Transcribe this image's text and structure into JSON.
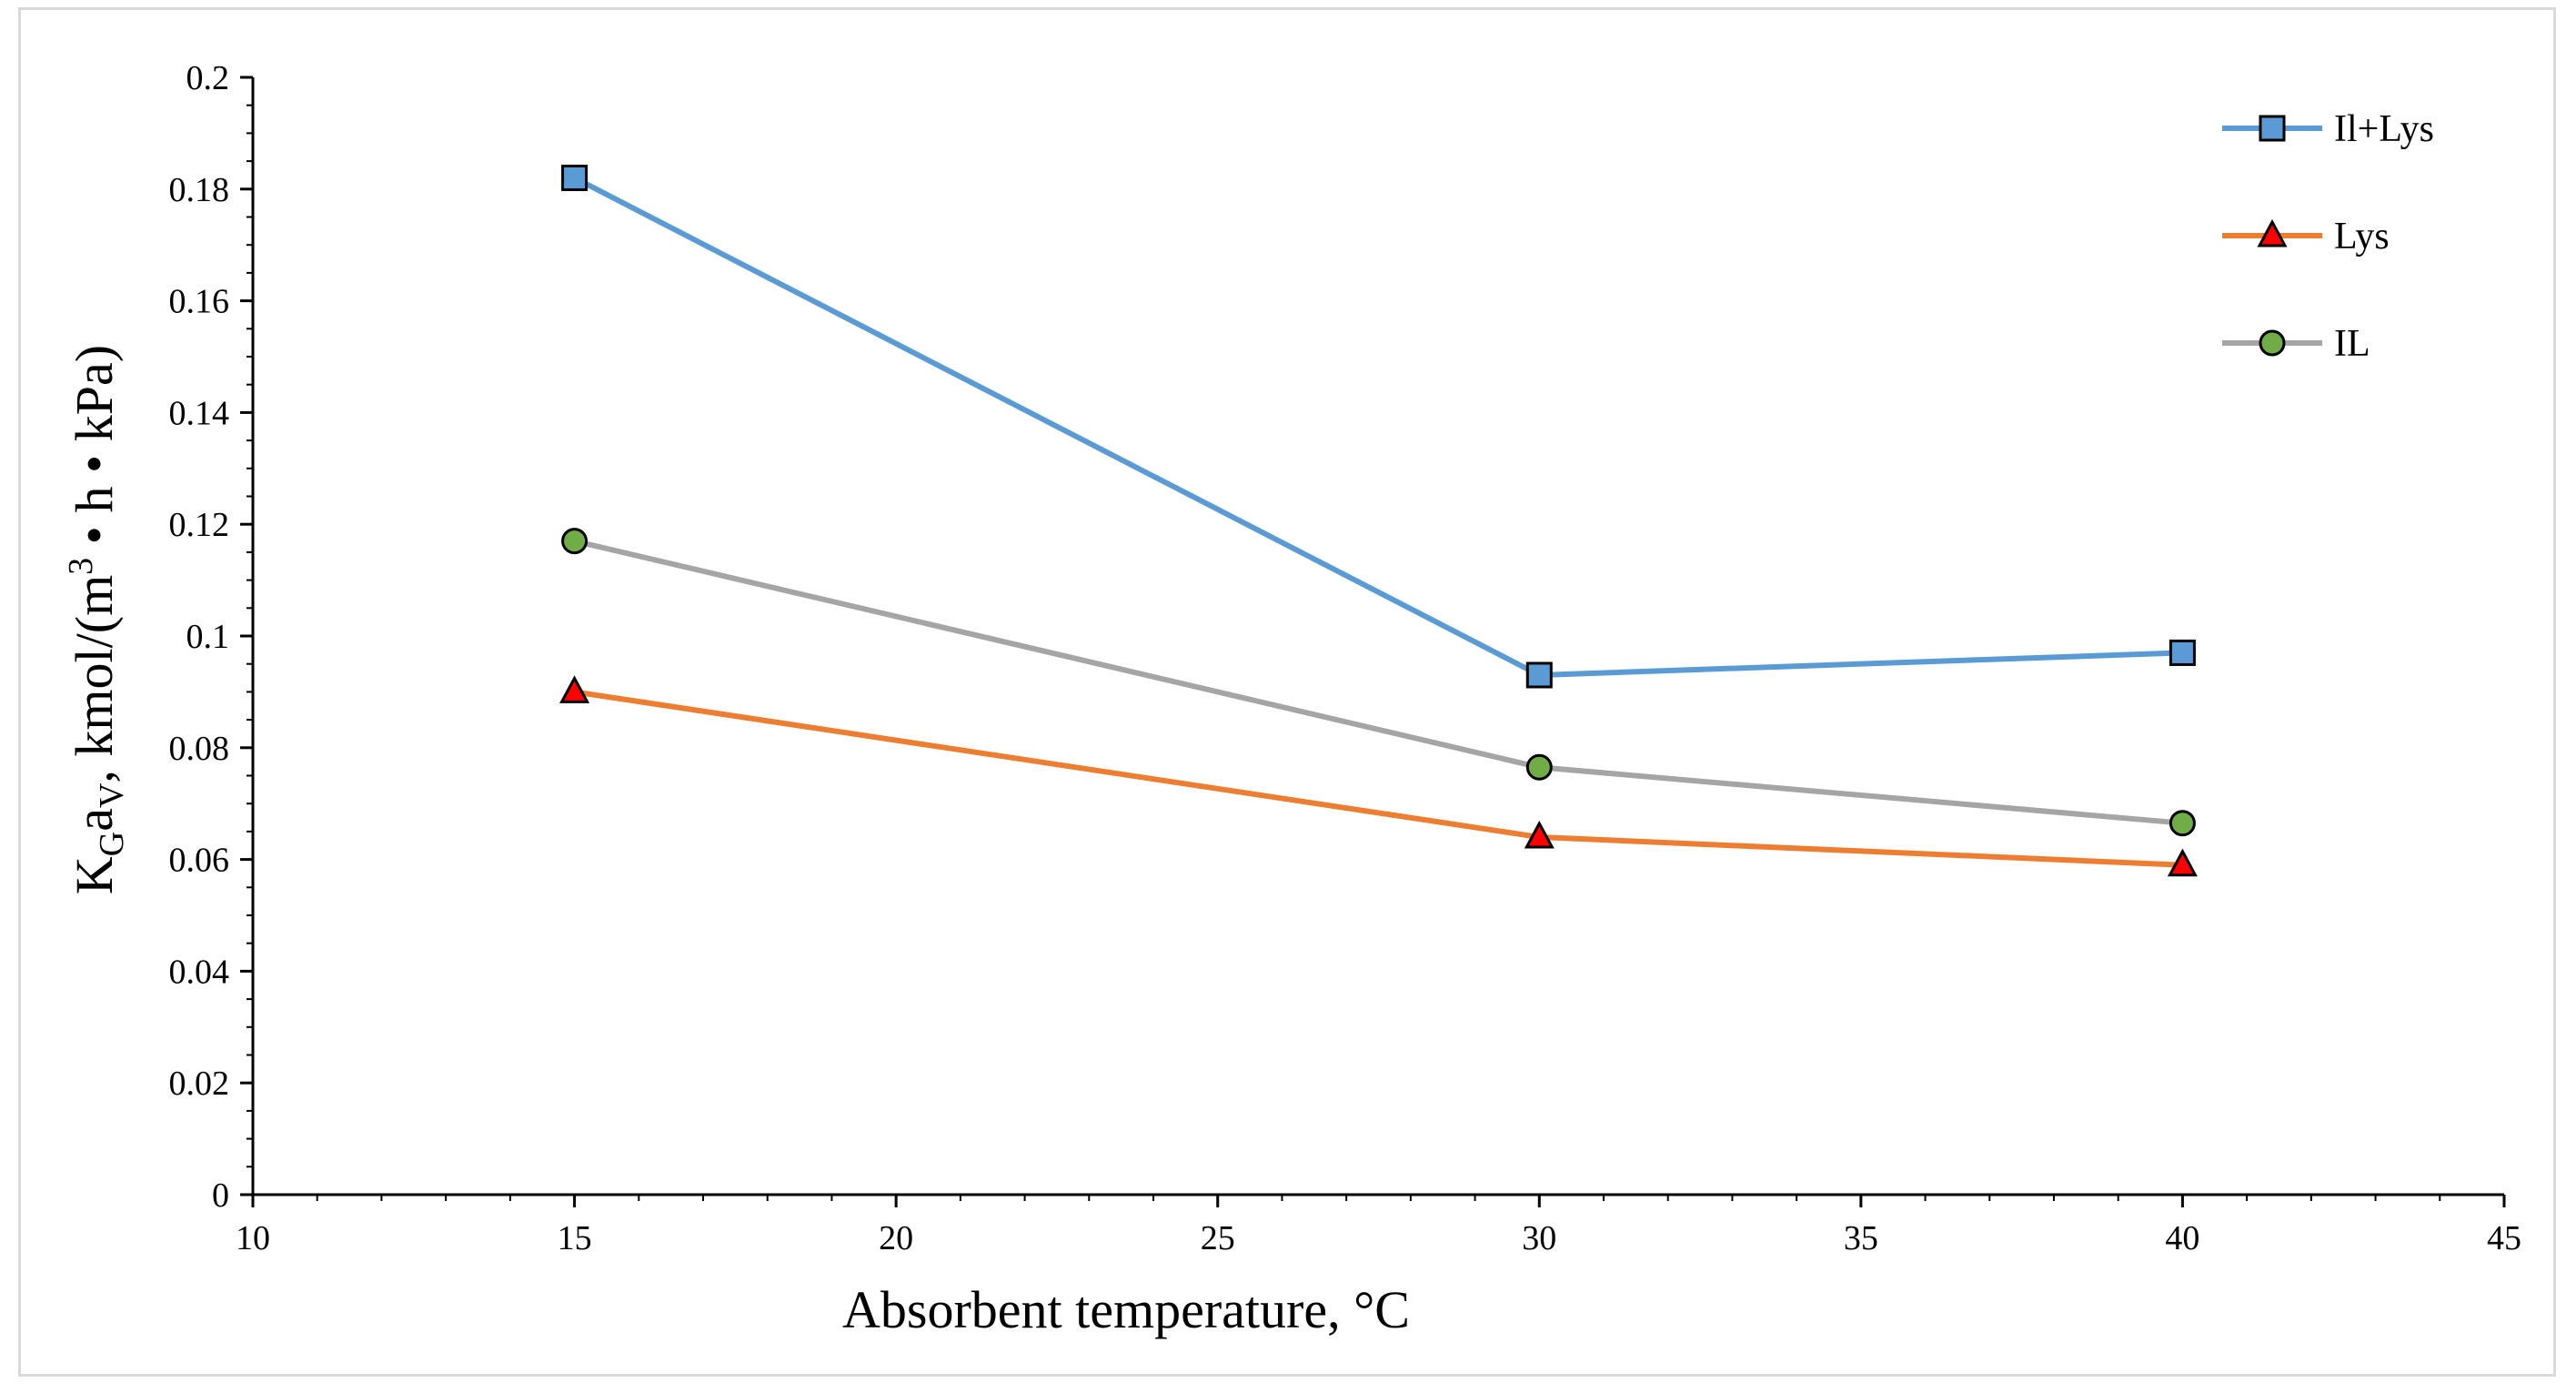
{
  "chart_data": {
    "type": "line",
    "title": "",
    "xlabel": "Absorbent temperature, °C",
    "ylabel": {
      "main": "K",
      "sub_g": "G",
      "a": "a",
      "sub_v": "V",
      "rest": ", kmol/(m",
      "sup": "3",
      "tail": " • h • kPa)"
    },
    "xlim": [
      10,
      45
    ],
    "ylim": [
      0,
      0.2
    ],
    "x_ticks": [
      "10",
      "15",
      "20",
      "25",
      "30",
      "35",
      "40",
      "45"
    ],
    "y_ticks": [
      "0",
      "0.02",
      "0.04",
      "0.06",
      "0.08",
      "0.1",
      "0.12",
      "0.14",
      "0.16",
      "0.18",
      "0.2"
    ],
    "x": [
      15,
      30,
      40
    ],
    "series": [
      {
        "name": "Il+Lys",
        "values": [
          0.182,
          0.093,
          0.097
        ],
        "color": "#5b9bd5",
        "marker": "square",
        "marker_fill": "#5b9bd5"
      },
      {
        "name": "Lys",
        "values": [
          0.09,
          0.064,
          0.059
        ],
        "color": "#ed7d31",
        "marker": "triangle",
        "marker_fill": "#ff0000"
      },
      {
        "name": "IL",
        "values": [
          0.117,
          0.0765,
          0.0665
        ],
        "color": "#a5a5a5",
        "marker": "circle",
        "marker_fill": "#70ad47"
      }
    ],
    "legend_position": "top-right",
    "grid": false
  }
}
